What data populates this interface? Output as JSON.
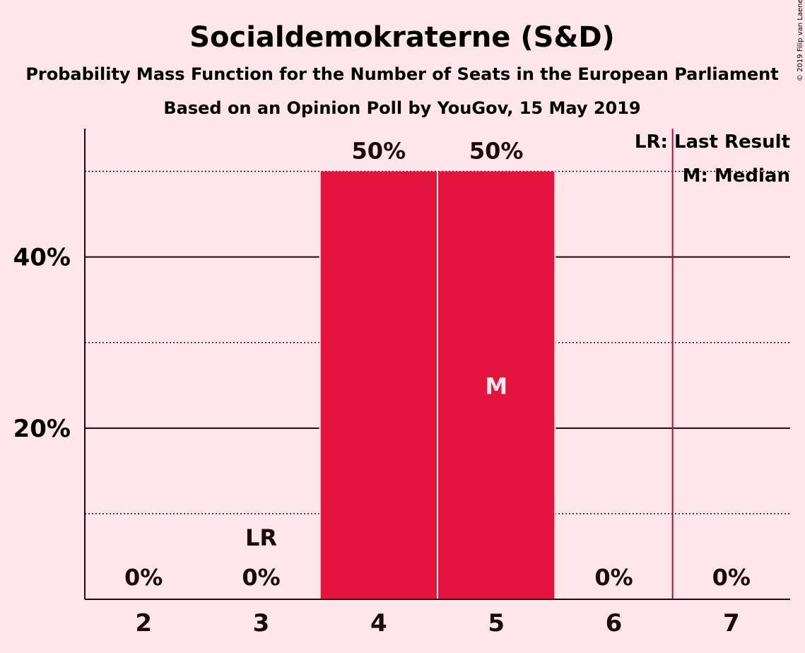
{
  "header": {
    "title": "Socialdemokraterne (S&D)",
    "subtitle": "Probability Mass Function for the Number of Seats in the European Parliament",
    "source": "Based on an Opinion Poll by YouGov, 15 May 2019"
  },
  "copyright": "© 2019 Filip van Laenen",
  "legend": {
    "last_result": "LR: Last Result",
    "median": "M: Median"
  },
  "colors": {
    "background": "#FFE6EA",
    "bar": "#E3143D",
    "last_result_line": "#A0143D",
    "text": "#1a0a0e"
  },
  "chart_data": {
    "type": "bar",
    "title": "Socialdemokraterne (S&D)",
    "categories": [
      "2",
      "3",
      "4",
      "5",
      "6",
      "7"
    ],
    "values": [
      0,
      0,
      50,
      50,
      0,
      0
    ],
    "data_labels": [
      "0%",
      "0%",
      "50%",
      "50%",
      "0%",
      "0%"
    ],
    "ylim": [
      0,
      55
    ],
    "yticks": [
      {
        "value": 20,
        "label": "20%"
      },
      {
        "value": 40,
        "label": "40%"
      }
    ],
    "minor_gridlines": [
      10,
      30,
      50
    ],
    "last_result": {
      "category": "3",
      "label": "LR"
    },
    "last_result_line_at": 6.5,
    "median": {
      "category": "5",
      "label": "M"
    },
    "legend_position": "top-right"
  }
}
